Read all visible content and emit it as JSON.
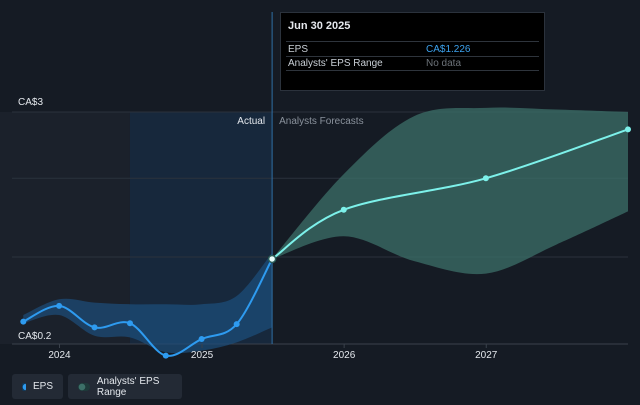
{
  "colors": {
    "background": "#151b24",
    "eps_line": "#2e9bf0",
    "forecast_line": "#7df1ea",
    "range_fill": "#3c7068",
    "past_range_fill": "#1d4f7c",
    "highlight": "#17283c",
    "tooltip_value": "#3ca2ee",
    "tooltip_nodata": "#6d737a"
  },
  "tooltip": {
    "date": "Jun 30 2025",
    "rows": [
      {
        "label": "EPS",
        "value": "CA$1.226"
      },
      {
        "label": "Analysts' EPS Range",
        "value": "No data"
      }
    ]
  },
  "legend": {
    "items": [
      {
        "label": "EPS",
        "icon": "eps-legend-dot"
      },
      {
        "label": "Analysts' EPS Range",
        "icon": "range-legend-dot"
      }
    ]
  },
  "chart_data": {
    "type": "line",
    "y_axis_labels": {
      "top": "CA$3",
      "bottom": "CA$0.2"
    },
    "ylim": [
      0.2,
      3
    ],
    "xlim": [
      "2023-09-01",
      "2027-12-31"
    ],
    "x_ticks": [
      {
        "label": "2024",
        "x": "2024-01-01"
      },
      {
        "label": "2025",
        "x": "2025-01-01"
      },
      {
        "label": "2026",
        "x": "2026-01-01"
      },
      {
        "label": "2027",
        "x": "2027-01-01"
      }
    ],
    "section_labels": {
      "actual": "Actual",
      "forecast": "Analysts Forecasts"
    },
    "divider_date": "2025-06-30",
    "highlight_start": "2024-06-30",
    "grid": true,
    "series": [
      {
        "name": "EPS",
        "points": [
          {
            "x": "2023-09-30",
            "y": 0.47
          },
          {
            "x": "2023-12-31",
            "y": 0.66
          },
          {
            "x": "2024-03-31",
            "y": 0.4
          },
          {
            "x": "2024-06-30",
            "y": 0.45
          },
          {
            "x": "2024-09-30",
            "y": 0.06
          },
          {
            "x": "2024-12-31",
            "y": 0.26
          },
          {
            "x": "2025-03-31",
            "y": 0.44
          },
          {
            "x": "2025-06-30",
            "y": 1.226
          }
        ]
      },
      {
        "name": "Analysts Forecasts",
        "points": [
          {
            "x": "2025-06-30",
            "y": 1.226
          },
          {
            "x": "2025-12-31",
            "y": 1.82
          },
          {
            "x": "2026-12-31",
            "y": 2.2
          },
          {
            "x": "2027-12-31",
            "y": 2.79
          }
        ]
      }
    ],
    "past_range": {
      "x": [
        "2023-09-30",
        "2023-12-31",
        "2024-03-31",
        "2024-06-30",
        "2024-09-30",
        "2024-12-31",
        "2025-03-31",
        "2025-06-30"
      ],
      "upper": [
        0.55,
        0.74,
        0.7,
        0.68,
        0.68,
        0.68,
        0.78,
        1.3
      ],
      "lower": [
        0.45,
        0.55,
        0.3,
        0.28,
        0.1,
        0.12,
        0.22,
        0.4
      ]
    },
    "forecast_range": {
      "x": [
        "2025-06-30",
        "2025-12-31",
        "2026-06-30",
        "2026-12-31",
        "2027-06-30",
        "2027-12-31"
      ],
      "upper": [
        1.226,
        2.25,
        2.95,
        3.05,
        3.03,
        3.0
      ],
      "lower": [
        1.226,
        1.5,
        1.2,
        1.05,
        1.4,
        1.8
      ]
    }
  }
}
